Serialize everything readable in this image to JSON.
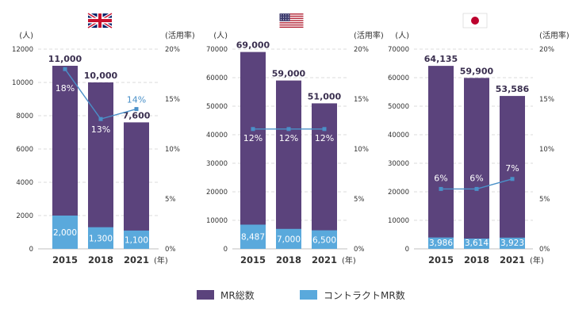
{
  "colors": {
    "total": "#5b437c",
    "contract": "#5aa9dc",
    "line": "#4a90c8",
    "grid": "#cfcfcf",
    "text": "#333333"
  },
  "chart_data": [
    {
      "type": "bar",
      "country": "uk-flag",
      "categories": [
        "2015",
        "2018",
        "2021"
      ],
      "x_unit": "(年)",
      "y_unit": "(人)",
      "y2_unit": "(活用率)",
      "ylim": [
        0,
        12000
      ],
      "yticks": [
        "0",
        "2000",
        "4000",
        "6000",
        "8000",
        "10000",
        "12000"
      ],
      "y2lim": [
        0,
        20
      ],
      "y2ticks": [
        "0%",
        "5%",
        "10%",
        "15%",
        "20%"
      ],
      "series": [
        {
          "name": "MR総数",
          "values": [
            11000,
            10000,
            7600
          ],
          "labels": [
            "11,000",
            "10,000",
            "7,600"
          ]
        },
        {
          "name": "コントラクトMR数",
          "values": [
            2000,
            1300,
            1100
          ],
          "labels": [
            "2,000",
            "1,300",
            "1,100"
          ]
        },
        {
          "name": "活用率",
          "values": [
            18,
            13,
            14
          ],
          "labels": [
            "18%",
            "13%",
            "14%"
          ]
        }
      ]
    },
    {
      "type": "bar",
      "country": "us-flag",
      "categories": [
        "2015",
        "2018",
        "2021"
      ],
      "x_unit": "(年)",
      "y_unit": "(人)",
      "y2_unit": "(活用率)",
      "ylim": [
        0,
        70000
      ],
      "yticks": [
        "0",
        "10000",
        "20000",
        "30000",
        "40000",
        "50000",
        "60000",
        "70000"
      ],
      "y2lim": [
        0,
        20
      ],
      "y2ticks": [
        "0%",
        "5%",
        "10%",
        "15%",
        "20%"
      ],
      "series": [
        {
          "name": "MR総数",
          "values": [
            69000,
            59000,
            51000
          ],
          "labels": [
            "69,000",
            "59,000",
            "51,000"
          ]
        },
        {
          "name": "コントラクトMR数",
          "values": [
            8487,
            7000,
            6500
          ],
          "labels": [
            "8,487",
            "7,000",
            "6,500"
          ]
        },
        {
          "name": "活用率",
          "values": [
            12,
            12,
            12
          ],
          "labels": [
            "12%",
            "12%",
            "12%"
          ]
        }
      ]
    },
    {
      "type": "bar",
      "country": "japan-flag",
      "categories": [
        "2015",
        "2018",
        "2021"
      ],
      "x_unit": "(年)",
      "y_unit": "(人)",
      "y2_unit": "(活用率)",
      "ylim": [
        0,
        70000
      ],
      "yticks": [
        "0",
        "10000",
        "20000",
        "30000",
        "40000",
        "50000",
        "60000",
        "70000"
      ],
      "y2lim": [
        0,
        20
      ],
      "y2ticks": [
        "0%",
        "5%",
        "10%",
        "15%",
        "20%"
      ],
      "series": [
        {
          "name": "MR総数",
          "values": [
            64135,
            59900,
            53586
          ],
          "labels": [
            "64,135",
            "59,900",
            "53,586"
          ]
        },
        {
          "name": "コントラクトMR数",
          "values": [
            3986,
            3614,
            3923
          ],
          "labels": [
            "3,986",
            "3,614",
            "3,923"
          ]
        },
        {
          "name": "活用率",
          "values": [
            6,
            6,
            7
          ],
          "labels": [
            "6%",
            "6%",
            "7%"
          ]
        }
      ]
    }
  ],
  "legend": {
    "total_label": "MR総数",
    "contract_label": "コントラクトMR数"
  }
}
